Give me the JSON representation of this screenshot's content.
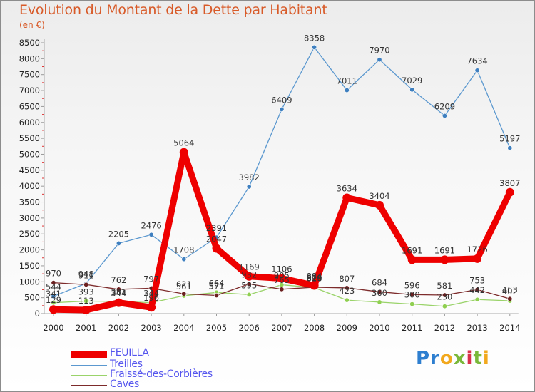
{
  "title": "Evolution du Montant de la Dette par Habitant",
  "unit": "(en €)",
  "logo": {
    "text": [
      "P",
      "r",
      "o",
      "x",
      "i",
      "t",
      "i"
    ],
    "colors": [
      "#2e7fd0",
      "#2e7fd0",
      "#f2a81d",
      "#7ab83a",
      "#d9304a",
      "#7ab83a",
      "#f2a81d"
    ]
  },
  "chart_data": {
    "type": "line",
    "x": [
      "2000",
      "2001",
      "2002",
      "2003",
      "2004",
      "2005",
      "2006",
      "2007",
      "2008",
      "2009",
      "2010",
      "2011",
      "2012",
      "2013",
      "2014"
    ],
    "ylim": [
      0,
      8500
    ],
    "yticks": [
      0,
      500,
      1000,
      1500,
      2000,
      2500,
      3000,
      3500,
      4000,
      4500,
      5000,
      5500,
      6000,
      6500,
      7000,
      7500,
      8000,
      8500
    ],
    "grid": false,
    "legend_position": "bottom-left",
    "series": [
      {
        "name": "FEUILLA",
        "color": "#ee0000",
        "values": [
          129,
          113,
          344,
          196,
          5064,
          2047,
          1169,
          1106,
          884,
          3634,
          3404,
          1691,
          1691,
          1726,
          3807
        ],
        "labels": [
          "129",
          "113",
          "344",
          "196",
          "5064",
          "2047",
          "1169",
          "1106",
          "884",
          "3634",
          "3404",
          "1691",
          "1691",
          "1726",
          "3807"
        ]
      },
      {
        "name": "Treilles",
        "color": "#5b98cf",
        "values": [
          544,
          948,
          2205,
          2476,
          1708,
          2391,
          3982,
          6409,
          8358,
          7011,
          7970,
          7029,
          6209,
          7634,
          5197
        ],
        "labels": [
          "544",
          "948",
          "2205",
          "2476",
          "1708",
          "2391",
          "3982",
          "6409",
          "8358",
          "7011",
          "7970",
          "7029",
          "6209",
          "7634",
          "5197"
        ]
      },
      {
        "name": "Fraissé-des-Corbières",
        "color": "#9ad36a",
        "values": [
          341,
          393,
          381,
          344,
          561,
          664,
          595,
          905,
          816,
          423,
          360,
          300,
          230,
          442,
          402
        ],
        "labels": [
          "341",
          "393",
          "381",
          "344",
          "561",
          "664",
          "595",
          "905",
          "816",
          "423",
          "360",
          "300",
          "230",
          "442",
          "402"
        ]
      },
      {
        "name": "Caves",
        "color": "#7d2b2b",
        "values": [
          970,
          911,
          762,
          797,
          621,
          571,
          932,
          765,
          829,
          807,
          684,
          596,
          581,
          753,
          463
        ],
        "labels": [
          "970",
          "911",
          "762",
          "797",
          "621",
          "571",
          "932",
          "765",
          "829",
          "807",
          "684",
          "596",
          "581",
          "753",
          "463"
        ]
      }
    ]
  }
}
